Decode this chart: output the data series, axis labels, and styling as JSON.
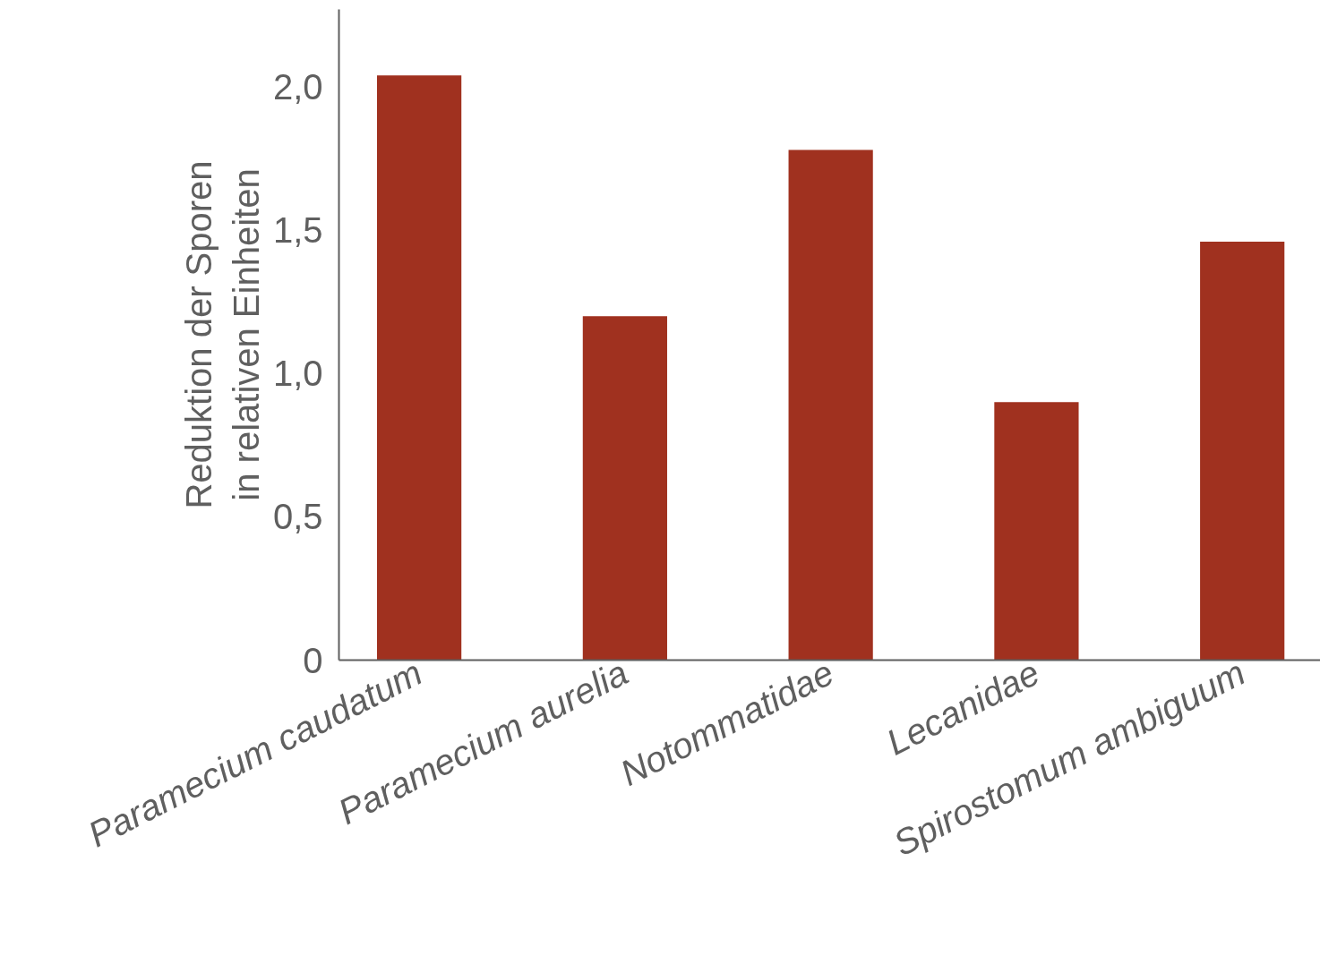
{
  "chart_data": {
    "type": "bar",
    "ylabel": "Reduktion der Sporen\nin relativen Einheiten",
    "categories": [
      "Paramecium caudatum",
      "Paramecium aurelia",
      "Notommatidae",
      "Lecanidae",
      "Spirostomum ambiguum"
    ],
    "values": [
      2.04,
      1.2,
      1.78,
      0.9,
      1.46
    ],
    "color": "#a0311f",
    "ylim": [
      0,
      2.27
    ],
    "yticks": [
      0,
      {
        "value": 0.5,
        "label": "0,5"
      },
      {
        "value": 1,
        "label": "1,0"
      },
      {
        "value": 1.5,
        "label": "1,5"
      },
      {
        "value": 2,
        "label": "2,0"
      }
    ],
    "grid": false
  }
}
